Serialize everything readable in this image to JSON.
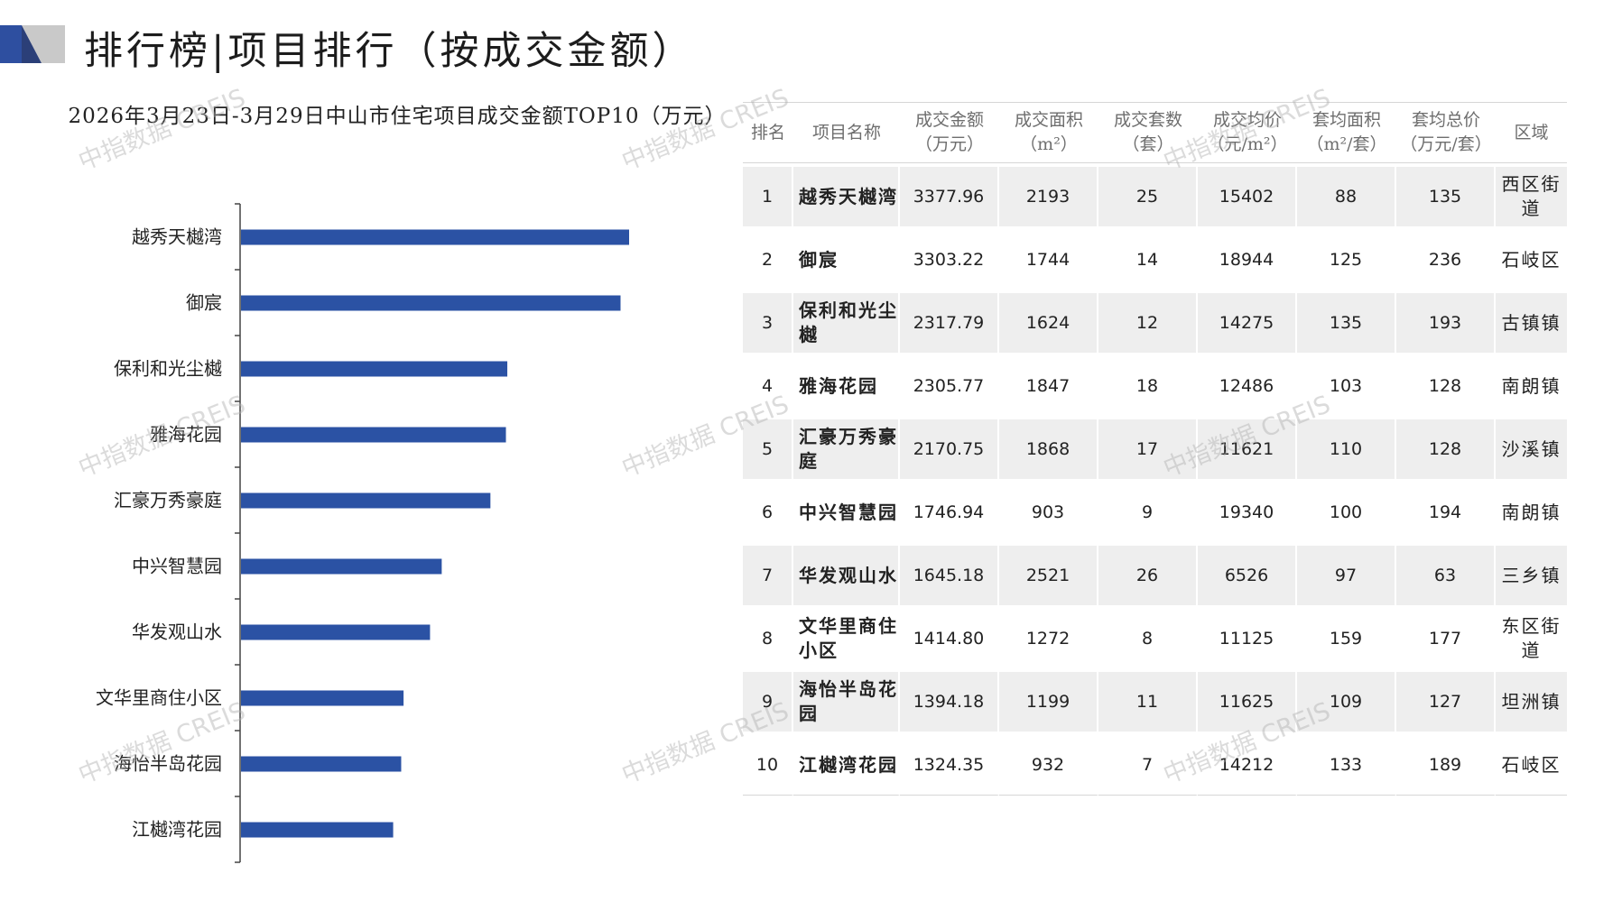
{
  "header": {
    "title": "排行榜|项目排行（按成交金额）"
  },
  "watermark_text": "中指数据 CREIS",
  "colors": {
    "bar": "#2b52a4",
    "logo_blue": "#2e4fa0",
    "logo_gray": "#c9c9c9"
  },
  "chart_data": {
    "type": "bar",
    "orientation": "horizontal",
    "title": "2026年3月23日-3月29日中山市住宅项目成交金额TOP10（万元）",
    "categories": [
      "越秀天樾湾",
      "御宸",
      "保利和光尘樾",
      "雅海花园",
      "汇豪万秀豪庭",
      "中兴智慧园",
      "华发观山水",
      "文华里商住小区",
      "海怡半岛花园",
      "江樾湾花园"
    ],
    "values": [
      3377.96,
      3303.22,
      2317.79,
      2305.77,
      2170.75,
      1746.94,
      1645.18,
      1414.8,
      1394.18,
      1324.35
    ],
    "xlim": [
      0,
      4000
    ],
    "grid": false,
    "legend": "none"
  },
  "table": {
    "headers": [
      [
        "排名"
      ],
      [
        "项目名称"
      ],
      [
        "成交金额",
        "（万元）"
      ],
      [
        "成交面积",
        "（m²）"
      ],
      [
        "成交套数",
        "（套）"
      ],
      [
        "成交均价",
        "（元/m²）"
      ],
      [
        "套均面积",
        "（m²/套）"
      ],
      [
        "套均总价",
        "（万元/套）"
      ],
      [
        "区域"
      ]
    ],
    "rows": [
      {
        "rank": "1",
        "name": "越秀天樾湾",
        "amount": "3377.96",
        "area": "2193",
        "units": "25",
        "price": "15402",
        "avg_area": "88",
        "avg_total": "135",
        "district": "西区街道"
      },
      {
        "rank": "2",
        "name": "御宸",
        "amount": "3303.22",
        "area": "1744",
        "units": "14",
        "price": "18944",
        "avg_area": "125",
        "avg_total": "236",
        "district": "石岐区"
      },
      {
        "rank": "3",
        "name": "保利和光尘樾",
        "amount": "2317.79",
        "area": "1624",
        "units": "12",
        "price": "14275",
        "avg_area": "135",
        "avg_total": "193",
        "district": "古镇镇"
      },
      {
        "rank": "4",
        "name": "雅海花园",
        "amount": "2305.77",
        "area": "1847",
        "units": "18",
        "price": "12486",
        "avg_area": "103",
        "avg_total": "128",
        "district": "南朗镇"
      },
      {
        "rank": "5",
        "name": "汇豪万秀豪庭",
        "amount": "2170.75",
        "area": "1868",
        "units": "17",
        "price": "11621",
        "avg_area": "110",
        "avg_total": "128",
        "district": "沙溪镇"
      },
      {
        "rank": "6",
        "name": "中兴智慧园",
        "amount": "1746.94",
        "area": "903",
        "units": "9",
        "price": "19340",
        "avg_area": "100",
        "avg_total": "194",
        "district": "南朗镇"
      },
      {
        "rank": "7",
        "name": "华发观山水",
        "amount": "1645.18",
        "area": "2521",
        "units": "26",
        "price": "6526",
        "avg_area": "97",
        "avg_total": "63",
        "district": "三乡镇"
      },
      {
        "rank": "8",
        "name": "文华里商住小区",
        "amount": "1414.80",
        "area": "1272",
        "units": "8",
        "price": "11125",
        "avg_area": "159",
        "avg_total": "177",
        "district": "东区街道"
      },
      {
        "rank": "9",
        "name": "海怡半岛花园",
        "amount": "1394.18",
        "area": "1199",
        "units": "11",
        "price": "11625",
        "avg_area": "109",
        "avg_total": "127",
        "district": "坦洲镇"
      },
      {
        "rank": "10",
        "name": "江樾湾花园",
        "amount": "1324.35",
        "area": "932",
        "units": "7",
        "price": "14212",
        "avg_area": "133",
        "avg_total": "189",
        "district": "石岐区"
      }
    ]
  }
}
